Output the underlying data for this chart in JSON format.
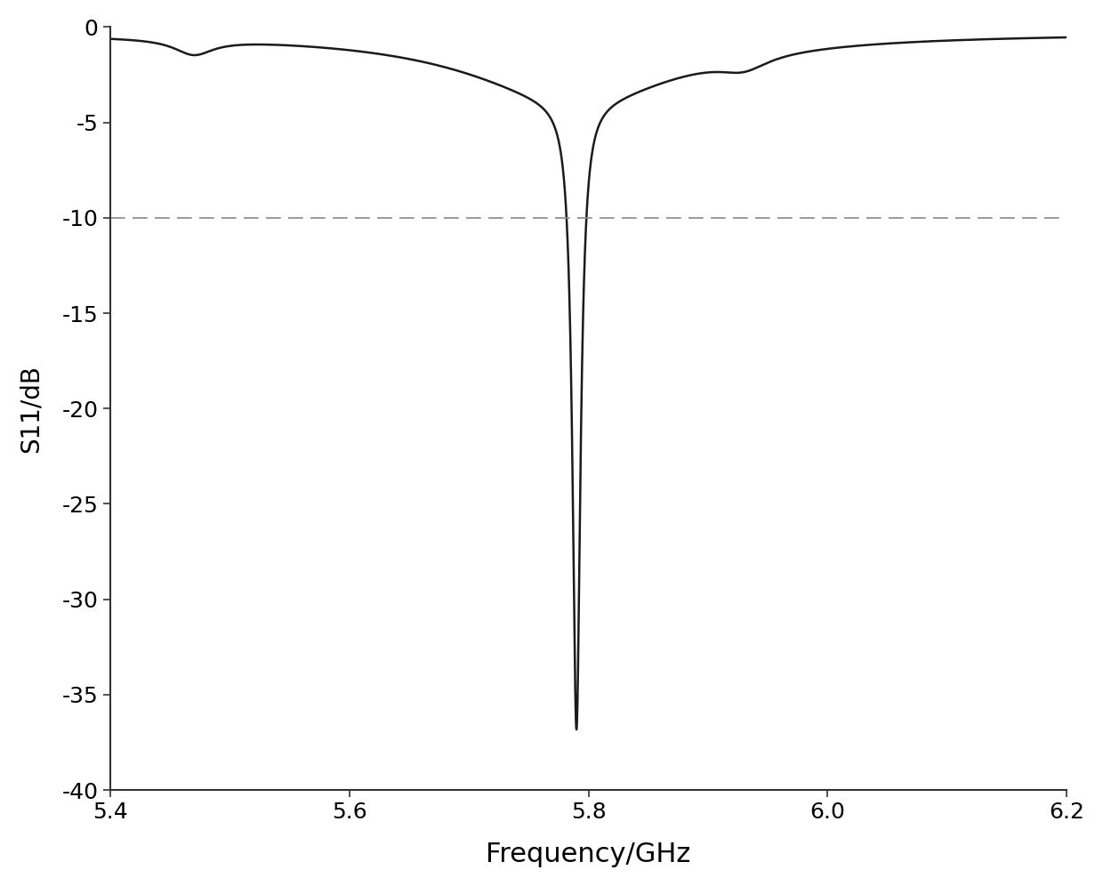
{
  "xlabel": "Frequency/GHz",
  "ylabel": "S11/dB",
  "xlim": [
    5.4,
    6.2
  ],
  "ylim": [
    -40,
    0
  ],
  "xticks": [
    5.4,
    5.6,
    5.8,
    6.0,
    6.2
  ],
  "yticks": [
    0,
    -5,
    -10,
    -15,
    -20,
    -25,
    -30,
    -35,
    -40
  ],
  "dashed_line_y": -10,
  "background_color": "#ffffff",
  "line_color": "#1a1a1a",
  "dashed_color": "#888888",
  "line_width": 1.8,
  "xlabel_fontsize": 22,
  "ylabel_fontsize": 20,
  "tick_fontsize": 18
}
